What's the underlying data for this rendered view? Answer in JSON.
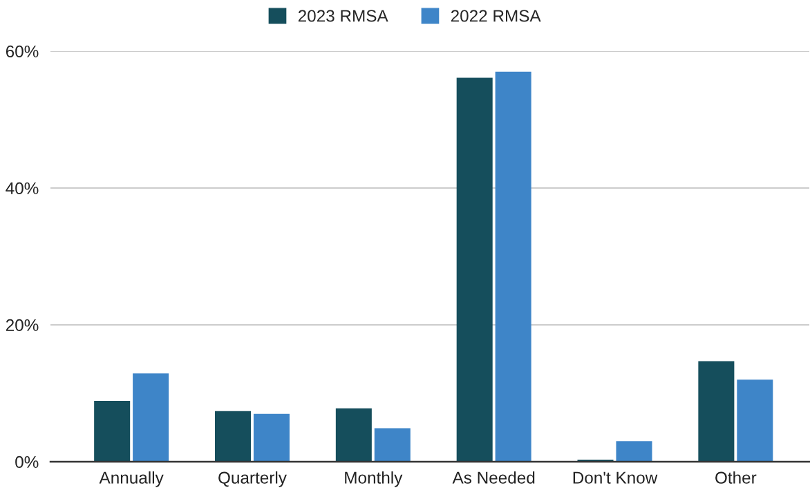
{
  "chart_data": {
    "type": "bar",
    "categories": [
      "Annually",
      "Quarterly",
      "Monthly",
      "As Needed",
      "Don't Know",
      "Other"
    ],
    "series": [
      {
        "name": "2023 RMSA",
        "color": "#154e5c",
        "values": [
          8.9,
          7.4,
          7.8,
          56.1,
          0.3,
          14.7
        ]
      },
      {
        "name": "2022 RMSA",
        "color": "#3e85c8",
        "values": [
          12.9,
          7.0,
          4.9,
          57.0,
          3.0,
          12.0
        ]
      }
    ],
    "ylim": [
      0,
      60
    ],
    "yticks": [
      {
        "value": 0,
        "label": "0%"
      },
      {
        "value": 20,
        "label": "20%"
      },
      {
        "value": 40,
        "label": "40%"
      },
      {
        "value": 60,
        "label": "60%"
      }
    ],
    "grid": "y",
    "legend": "top"
  }
}
